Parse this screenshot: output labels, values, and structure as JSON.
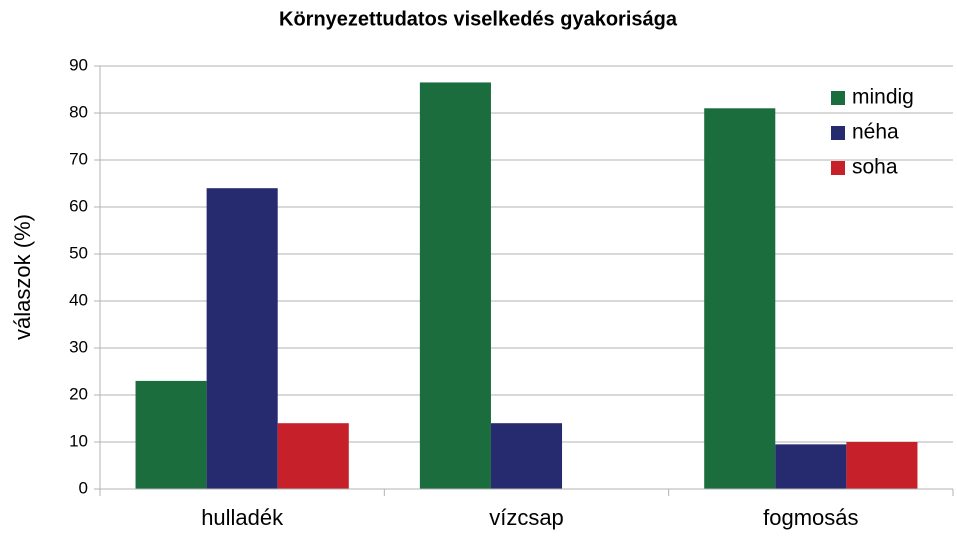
{
  "chart_data": {
    "type": "bar",
    "title": "Környezettudatos viselkedés gyakorisága",
    "ylabel": "válaszok (%)",
    "categories": [
      "hulladék",
      "vízcsap",
      "fogmosás"
    ],
    "series": [
      {
        "name": "mindig",
        "color": "#1b6d3d",
        "values": [
          23,
          86.5,
          81
        ]
      },
      {
        "name": "néha",
        "color": "#262a6f",
        "values": [
          64,
          14,
          9.5
        ]
      },
      {
        "name": "soha",
        "color": "#c6202a",
        "values": [
          14,
          0,
          10
        ]
      }
    ],
    "ylim": [
      0,
      90
    ],
    "yticks": [
      0,
      10,
      20,
      30,
      40,
      50,
      60,
      70,
      80,
      90
    ],
    "grid": true,
    "legend": "top-right"
  }
}
